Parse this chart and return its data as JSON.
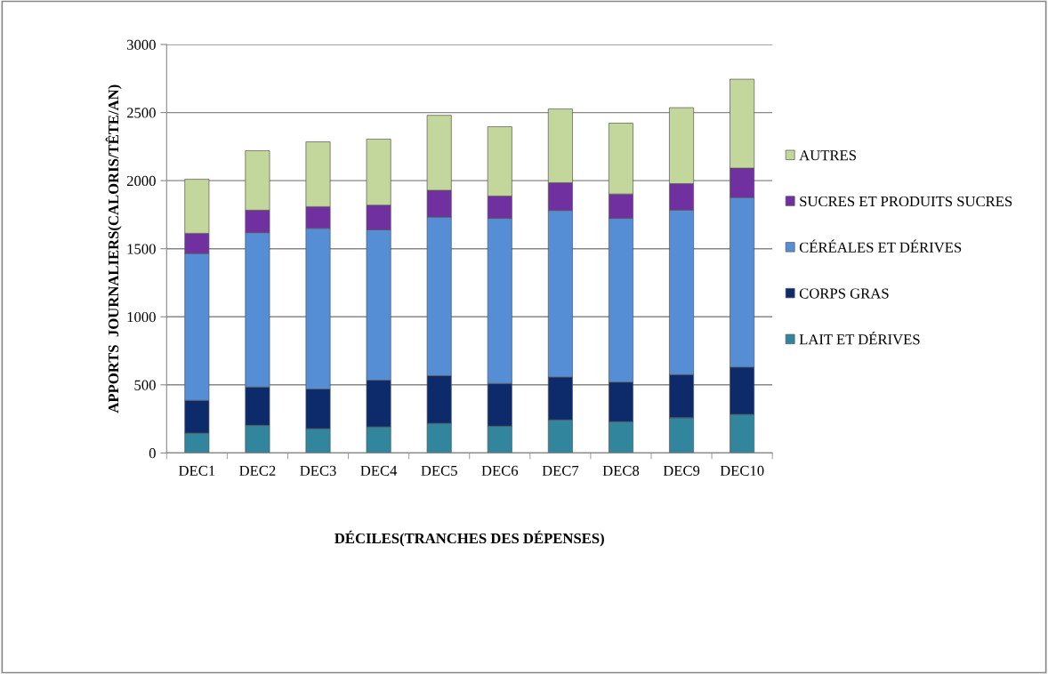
{
  "chart_data": {
    "type": "bar",
    "stacked": true,
    "xlabel": "DÉCILES(TRANCHES DES DÉPENSES)",
    "ylabel": "APPORTS  JOURNALIERS(CALORIS/TÊTE/AN)",
    "categories": [
      "DEC1",
      "DEC2",
      "DEC3",
      "DEC4",
      "DEC5",
      "DEC6",
      "DEC7",
      "DEC8",
      "DEC9",
      "DEC10"
    ],
    "series": [
      {
        "name": "LAIT ET DÉRIVES",
        "color": "#31859c",
        "values": [
          146,
          203,
          179,
          192,
          218,
          197,
          243,
          230,
          258,
          284
        ]
      },
      {
        "name": "CORPS GRAS",
        "color": "#0d2a6b",
        "values": [
          240,
          281,
          290,
          342,
          349,
          313,
          314,
          290,
          317,
          346
        ]
      },
      {
        "name": "CÉRÉALES ET DÉRIVES",
        "color": "#558ed5",
        "values": [
          1079,
          1134,
          1181,
          1105,
          1166,
          1213,
          1224,
          1203,
          1209,
          1246
        ]
      },
      {
        "name": "SUCRES ET PRODUITS SUCRES",
        "color": "#7030a0",
        "values": [
          148,
          165,
          159,
          181,
          196,
          164,
          204,
          179,
          194,
          216
        ]
      },
      {
        "name": "AUTRES",
        "color": "#c3d69b",
        "values": [
          397,
          437,
          476,
          485,
          551,
          509,
          542,
          520,
          558,
          653
        ]
      }
    ],
    "ylim": [
      0,
      3000
    ],
    "yticks": [
      0,
      500,
      1000,
      1500,
      2000,
      2500,
      3000
    ],
    "grid": "y",
    "legend": "right"
  }
}
